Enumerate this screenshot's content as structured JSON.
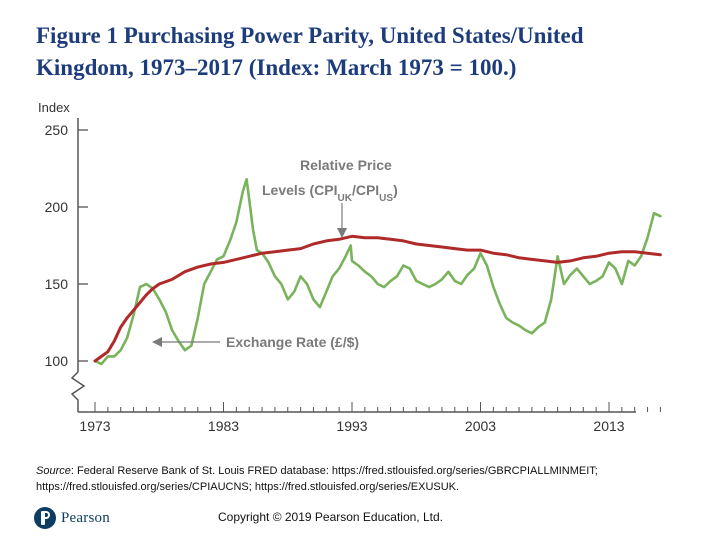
{
  "title": {
    "line1": "Figure 1 Purchasing Power Parity, United States/United",
    "line2": "Kingdom, 1973–2017 (Index: March 1973 = 100.)"
  },
  "source_label": "Source",
  "source_text": ": Federal Reserve Bank of St. Louis FRED database: https://fred.stlouisfed.org/series/GBRCPIALLMINMEIT; https://fred.stlouisfed.org/series/CPIAUCNS; https://fred.stlouisfed.org/series/EXUSUK.",
  "footer": {
    "logo_text": "Pearson",
    "copyright": "Copyright © 2019 Pearson Education, Ltd."
  },
  "colors": {
    "relative_price": "#b02a2a",
    "exchange_rate": "#79b35c",
    "axis": "#555555",
    "annotation": "#7a7a7a",
    "title": "#1d3c7c"
  },
  "chart_data": {
    "type": "line",
    "ylabel": "Index",
    "ylim": [
      85,
      250
    ],
    "xlim": [
      1973,
      2017.5
    ],
    "yticks": [
      100,
      150,
      200,
      250
    ],
    "ytick_labels": [
      "100",
      "150",
      "200",
      "250"
    ],
    "xticks": [
      1973,
      1983,
      1993,
      2003,
      2013
    ],
    "xtick_labels": [
      "1973",
      "1983",
      "1993",
      "2003",
      "2013"
    ],
    "series": [
      {
        "name": "Relative Price Levels (CPI_UK/CPI_US)",
        "x": [
          1973,
          1973.5,
          1974,
          1974.5,
          1975,
          1975.5,
          1976,
          1976.5,
          1977,
          1977.5,
          1978,
          1979,
          1980,
          1981,
          1982,
          1983,
          1984,
          1985,
          1986,
          1987,
          1988,
          1989,
          1990,
          1991,
          1992,
          1993,
          1994,
          1995,
          1996,
          1997,
          1998,
          1999,
          2000,
          2001,
          2002,
          2003,
          2004,
          2005,
          2006,
          2007,
          2008,
          2009,
          2010,
          2011,
          2012,
          2013,
          2014,
          2015,
          2016,
          2017
        ],
        "values": [
          100,
          103,
          106,
          113,
          122,
          128,
          133,
          138,
          143,
          147,
          150,
          153,
          158,
          161,
          163,
          164,
          166,
          168,
          170,
          171,
          172,
          173,
          176,
          178,
          179,
          181,
          180,
          180,
          179,
          178,
          176,
          175,
          174,
          173,
          172,
          172,
          170,
          169,
          167,
          166,
          165,
          164,
          165,
          167,
          168,
          170,
          171,
          171,
          170,
          169
        ]
      },
      {
        "name": "Exchange Rate (£/$)",
        "x": [
          1973,
          1973.5,
          1974,
          1974.5,
          1975,
          1975.5,
          1976,
          1976.5,
          1977,
          1977.5,
          1978,
          1978.5,
          1979,
          1979.5,
          1980,
          1980.5,
          1981,
          1981.5,
          1982,
          1982.5,
          1983,
          1983.5,
          1984,
          1984.5,
          1984.8,
          1985,
          1985.3,
          1985.6,
          1986,
          1986.5,
          1987,
          1987.5,
          1988,
          1988.5,
          1989,
          1989.5,
          1990,
          1990.5,
          1991,
          1991.5,
          1992,
          1992.5,
          1992.9,
          1993,
          1993.5,
          1994,
          1994.5,
          1995,
          1995.5,
          1996,
          1996.5,
          1997,
          1997.5,
          1998,
          1998.5,
          1999,
          1999.5,
          2000,
          2000.5,
          2001,
          2001.5,
          2002,
          2002.5,
          2003,
          2003.5,
          2004,
          2004.5,
          2005,
          2005.5,
          2006,
          2006.5,
          2007,
          2007.5,
          2008,
          2008.5,
          2009,
          2009.5,
          2010,
          2010.5,
          2011,
          2011.5,
          2012,
          2012.5,
          2013,
          2013.5,
          2014,
          2014.5,
          2015,
          2015.5,
          2016,
          2016.5,
          2017
        ],
        "values": [
          100,
          98,
          103,
          103,
          107,
          115,
          130,
          148,
          150,
          147,
          140,
          132,
          120,
          113,
          107,
          110,
          128,
          150,
          158,
          166,
          168,
          178,
          190,
          210,
          218,
          205,
          185,
          172,
          170,
          164,
          155,
          150,
          140,
          145,
          155,
          150,
          140,
          135,
          145,
          155,
          160,
          168,
          175,
          165,
          162,
          158,
          155,
          150,
          148,
          152,
          155,
          162,
          160,
          152,
          150,
          148,
          150,
          153,
          158,
          152,
          150,
          156,
          160,
          170,
          162,
          148,
          137,
          128,
          125,
          123,
          120,
          118,
          122,
          125,
          140,
          168,
          150,
          156,
          160,
          155,
          150,
          152,
          155,
          164,
          160,
          150,
          165,
          162,
          168,
          180,
          196,
          194
        ]
      }
    ],
    "annotations": [
      {
        "id": "relative-price",
        "line1": "Relative Price",
        "line2_prefix": "Levels (CPI",
        "sub_uk": "UK",
        "slash": "/CPI",
        "sub_us": "US",
        "line2_suffix": ")"
      },
      {
        "id": "exchange-rate",
        "text": "Exchange Rate (£/$)"
      }
    ]
  }
}
